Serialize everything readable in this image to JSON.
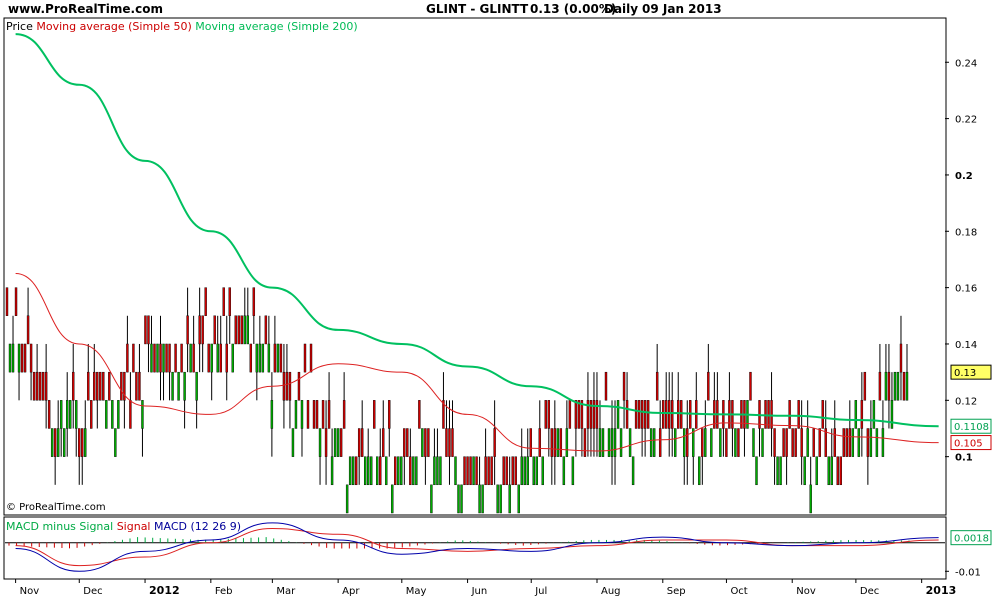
{
  "header": {
    "site": "www.ProRealTime.com",
    "instrument": "GLINT - GLINTT",
    "quote": "0.13 (0.00%)",
    "period": "Daily",
    "date": "09 Jan 2013"
  },
  "price_panel": {
    "legend": [
      {
        "text": "Price",
        "color": "#000000"
      },
      {
        "text": "Moving average (Simple 50)",
        "color": "#cc0000"
      },
      {
        "text": "Moving average (Simple 200)",
        "color": "#00bb55"
      }
    ],
    "copyright": "© ProRealTime.com",
    "last_price_tag": "0.13",
    "ma200_tag": "0.1108",
    "ma50_tag": "0.105"
  },
  "macd_panel": {
    "legend": [
      {
        "text": "MACD minus Signal",
        "color": "#00aa44"
      },
      {
        "text": "Signal",
        "color": "#cc0000"
      },
      {
        "text": "MACD (12 26 9)",
        "color": "#000099"
      }
    ],
    "value_tag": "0.0018"
  },
  "colors": {
    "ma50": "#dd2222",
    "ma200": "#00c060",
    "candle_up": "#00aa00",
    "candle_down": "#cc0000",
    "price_tag_bg": "#ffff66",
    "macd_line": "#0000aa",
    "signal_line": "#dd2222",
    "hist": "#00aa44"
  },
  "chart_data": [
    {
      "type": "line",
      "title": "GLINT - GLINTT Daily",
      "x_ticks": [
        "Nov",
        "Dec",
        "2012",
        "Feb",
        "Mar",
        "Apr",
        "May",
        "Jun",
        "Jul",
        "Aug",
        "Sep",
        "Oct",
        "Nov",
        "Dec",
        "2013"
      ],
      "y_ticks": [
        "0.24",
        "0.22",
        "0.2",
        "0.18",
        "0.16",
        "0.14",
        "0.12",
        "0.1"
      ],
      "ylim": [
        0.08,
        0.255
      ],
      "price_range": {
        "min": 0.09,
        "max": 0.16,
        "last": 0.13
      },
      "series": [
        {
          "name": "Moving average (Simple 200)",
          "x": [
            "2011-11-01",
            "2011-12-01",
            "2012-01-01",
            "2012-02-01",
            "2012-03-01",
            "2012-04-01",
            "2012-05-01",
            "2012-06-01",
            "2012-07-01",
            "2012-08-01",
            "2012-09-01",
            "2012-10-01",
            "2012-11-01",
            "2012-12-01",
            "2013-01-09"
          ],
          "values": [
            0.25,
            0.232,
            0.205,
            0.18,
            0.16,
            0.145,
            0.14,
            0.132,
            0.125,
            0.118,
            0.1155,
            0.115,
            0.1145,
            0.113,
            0.1108
          ]
        },
        {
          "name": "Moving average (Simple 50)",
          "x": [
            "2011-11-01",
            "2011-12-01",
            "2012-01-01",
            "2012-02-01",
            "2012-03-01",
            "2012-04-01",
            "2012-05-01",
            "2012-06-01",
            "2012-07-01",
            "2012-08-01",
            "2012-09-01",
            "2012-10-01",
            "2012-11-01",
            "2012-12-01",
            "2013-01-09"
          ],
          "values": [
            0.165,
            0.14,
            0.118,
            0.115,
            0.125,
            0.133,
            0.13,
            0.115,
            0.103,
            0.102,
            0.106,
            0.112,
            0.111,
            0.107,
            0.105
          ]
        }
      ]
    },
    {
      "type": "line",
      "title": "MACD (12 26 9)",
      "y_ticks": [
        "-0.01"
      ],
      "ylim": [
        -0.012,
        0.008
      ],
      "series": [
        {
          "name": "MACD (12 26 9)",
          "x": [
            "2011-11-01",
            "2011-12-01",
            "2012-01-01",
            "2012-02-01",
            "2012-03-01",
            "2012-04-01",
            "2012-05-01",
            "2012-06-01",
            "2012-07-01",
            "2012-08-01",
            "2012-09-01",
            "2012-10-01",
            "2012-11-01",
            "2012-12-01",
            "2013-01-09"
          ],
          "values": [
            -0.002,
            -0.01,
            -0.003,
            0.001,
            0.007,
            0.001,
            -0.004,
            -0.002,
            -0.003,
            0.0,
            0.002,
            0.0,
            -0.001,
            0.0,
            0.0018
          ]
        },
        {
          "name": "Signal",
          "x": [
            "2011-11-01",
            "2011-12-01",
            "2012-01-01",
            "2012-02-01",
            "2012-03-01",
            "2012-04-01",
            "2012-05-01",
            "2012-06-01",
            "2012-07-01",
            "2012-08-01",
            "2012-09-01",
            "2012-10-01",
            "2012-11-01",
            "2012-12-01",
            "2013-01-09"
          ],
          "values": [
            -0.001,
            -0.008,
            -0.005,
            0.0,
            0.005,
            0.003,
            -0.002,
            -0.003,
            -0.002,
            -0.001,
            0.001,
            0.001,
            -0.001,
            -0.001,
            0.001
          ]
        }
      ]
    }
  ]
}
